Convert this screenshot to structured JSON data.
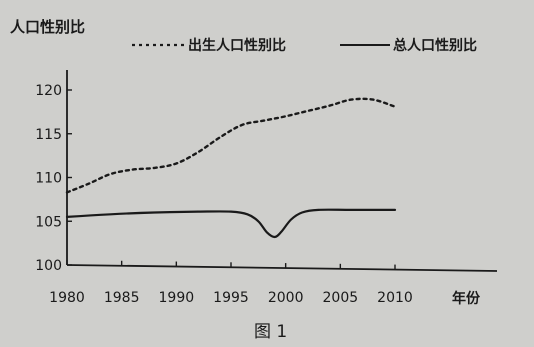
{
  "chart_data": {
    "type": "line",
    "title": "",
    "ylabel": "人口性别比",
    "xlabel": "年份",
    "caption": "图 1",
    "ylim": [
      100,
      122
    ],
    "xlim": [
      1980,
      2010
    ],
    "yticks": [
      100,
      105,
      110,
      115,
      120
    ],
    "xticks": [
      1980,
      1985,
      1990,
      1995,
      2000,
      2005,
      2010
    ],
    "grid": false,
    "legend_position": "top",
    "series": [
      {
        "name": "出生人口性别比",
        "style": "dashed",
        "x": [
          1980,
          1982,
          1984,
          1986,
          1988,
          1990,
          1992,
          1994,
          1996,
          1998,
          2000,
          2002,
          2004,
          2006,
          2008,
          2010
        ],
        "y": [
          108.3,
          109.3,
          110.4,
          110.9,
          111.1,
          111.6,
          112.9,
          114.6,
          116.0,
          116.5,
          117.0,
          117.6,
          118.2,
          118.9,
          118.9,
          118.1
        ]
      },
      {
        "name": "总人口性别比",
        "style": "solid",
        "x": [
          1980,
          1984,
          1988,
          1992,
          1995,
          1996.5,
          1997.5,
          1998.3,
          1999,
          1999.6,
          2000.5,
          2001.5,
          2003,
          2006,
          2010
        ],
        "y": [
          105.5,
          105.8,
          106.0,
          106.1,
          106.1,
          105.8,
          105.0,
          103.7,
          103.2,
          103.8,
          105.2,
          106.0,
          106.3,
          106.3,
          106.3
        ]
      }
    ]
  }
}
